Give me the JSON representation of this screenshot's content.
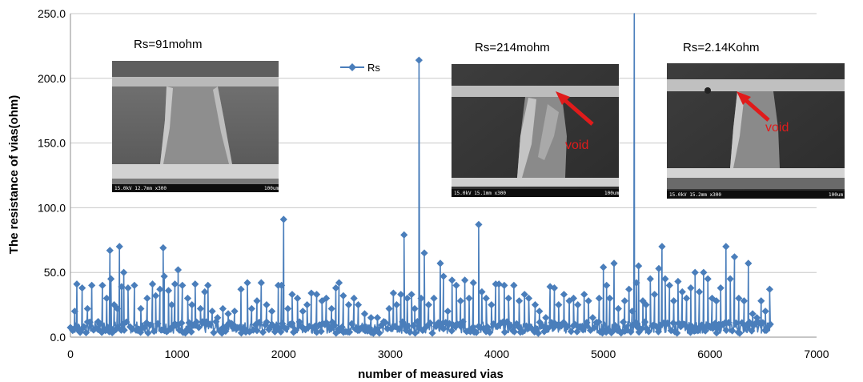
{
  "chart_data": {
    "type": "line",
    "xlabel": "number of measured vias",
    "ylabel": "The resistance of vias(ohm)",
    "xlim": [
      0,
      7000
    ],
    "ylim": [
      0,
      250
    ],
    "x_ticks": [
      "0",
      "1000",
      "2000",
      "3000",
      "4000",
      "5000",
      "6000",
      "7000"
    ],
    "y_ticks": [
      "0.0",
      "50.0",
      "100.0",
      "150.0",
      "200.0",
      "250.0"
    ],
    "grid": "horizontal",
    "legend": {
      "position": "top-center",
      "entries": [
        "Rs"
      ]
    },
    "series": [
      {
        "name": "Rs",
        "color": "#4a7ebb",
        "marker": "diamond",
        "baseline": {
          "x_start": 0,
          "x_end": 6580,
          "typical_range": [
            3,
            12
          ]
        },
        "spikes": [
          {
            "x": 40,
            "y": 20
          },
          {
            "x": 60,
            "y": 41
          },
          {
            "x": 110,
            "y": 38
          },
          {
            "x": 160,
            "y": 22
          },
          {
            "x": 200,
            "y": 40
          },
          {
            "x": 260,
            "y": 12
          },
          {
            "x": 300,
            "y": 40
          },
          {
            "x": 340,
            "y": 30
          },
          {
            "x": 370,
            "y": 67
          },
          {
            "x": 380,
            "y": 45
          },
          {
            "x": 410,
            "y": 25
          },
          {
            "x": 440,
            "y": 22
          },
          {
            "x": 460,
            "y": 70
          },
          {
            "x": 480,
            "y": 39
          },
          {
            "x": 500,
            "y": 50
          },
          {
            "x": 540,
            "y": 38
          },
          {
            "x": 600,
            "y": 40
          },
          {
            "x": 660,
            "y": 22
          },
          {
            "x": 720,
            "y": 30
          },
          {
            "x": 770,
            "y": 41
          },
          {
            "x": 800,
            "y": 32
          },
          {
            "x": 840,
            "y": 37
          },
          {
            "x": 870,
            "y": 69
          },
          {
            "x": 880,
            "y": 47
          },
          {
            "x": 920,
            "y": 36
          },
          {
            "x": 950,
            "y": 25
          },
          {
            "x": 980,
            "y": 41
          },
          {
            "x": 1010,
            "y": 52
          },
          {
            "x": 1050,
            "y": 40
          },
          {
            "x": 1100,
            "y": 30
          },
          {
            "x": 1140,
            "y": 25
          },
          {
            "x": 1170,
            "y": 41
          },
          {
            "x": 1220,
            "y": 22
          },
          {
            "x": 1260,
            "y": 35
          },
          {
            "x": 1290,
            "y": 40
          },
          {
            "x": 1330,
            "y": 20
          },
          {
            "x": 1380,
            "y": 15
          },
          {
            "x": 1430,
            "y": 22
          },
          {
            "x": 1480,
            "y": 18
          },
          {
            "x": 1540,
            "y": 20
          },
          {
            "x": 1600,
            "y": 37
          },
          {
            "x": 1660,
            "y": 42
          },
          {
            "x": 1700,
            "y": 22
          },
          {
            "x": 1750,
            "y": 28
          },
          {
            "x": 1790,
            "y": 42
          },
          {
            "x": 1840,
            "y": 25
          },
          {
            "x": 1890,
            "y": 20
          },
          {
            "x": 1950,
            "y": 40
          },
          {
            "x": 1980,
            "y": 40
          },
          {
            "x": 2000,
            "y": 91
          },
          {
            "x": 2040,
            "y": 22
          },
          {
            "x": 2080,
            "y": 33
          },
          {
            "x": 2130,
            "y": 30
          },
          {
            "x": 2180,
            "y": 20
          },
          {
            "x": 2220,
            "y": 25
          },
          {
            "x": 2260,
            "y": 34
          },
          {
            "x": 2310,
            "y": 33
          },
          {
            "x": 2360,
            "y": 28
          },
          {
            "x": 2400,
            "y": 30
          },
          {
            "x": 2450,
            "y": 22
          },
          {
            "x": 2490,
            "y": 38
          },
          {
            "x": 2520,
            "y": 42
          },
          {
            "x": 2560,
            "y": 32
          },
          {
            "x": 2610,
            "y": 25
          },
          {
            "x": 2660,
            "y": 30
          },
          {
            "x": 2700,
            "y": 25
          },
          {
            "x": 2760,
            "y": 18
          },
          {
            "x": 2820,
            "y": 15
          },
          {
            "x": 2880,
            "y": 15
          },
          {
            "x": 2940,
            "y": 12
          },
          {
            "x": 2990,
            "y": 22
          },
          {
            "x": 3030,
            "y": 34
          },
          {
            "x": 3060,
            "y": 25
          },
          {
            "x": 3100,
            "y": 33
          },
          {
            "x": 3130,
            "y": 79
          },
          {
            "x": 3160,
            "y": 30
          },
          {
            "x": 3200,
            "y": 33
          },
          {
            "x": 3230,
            "y": 22
          },
          {
            "x": 3270,
            "y": 214
          },
          {
            "x": 3290,
            "y": 30
          },
          {
            "x": 3320,
            "y": 65
          },
          {
            "x": 3360,
            "y": 25
          },
          {
            "x": 3410,
            "y": 30
          },
          {
            "x": 3470,
            "y": 57
          },
          {
            "x": 3500,
            "y": 47
          },
          {
            "x": 3540,
            "y": 20
          },
          {
            "x": 3580,
            "y": 44
          },
          {
            "x": 3620,
            "y": 40
          },
          {
            "x": 3660,
            "y": 28
          },
          {
            "x": 3700,
            "y": 44
          },
          {
            "x": 3740,
            "y": 30
          },
          {
            "x": 3780,
            "y": 42
          },
          {
            "x": 3830,
            "y": 87
          },
          {
            "x": 3860,
            "y": 35
          },
          {
            "x": 3900,
            "y": 30
          },
          {
            "x": 3950,
            "y": 25
          },
          {
            "x": 3990,
            "y": 41
          },
          {
            "x": 4020,
            "y": 41
          },
          {
            "x": 4070,
            "y": 40
          },
          {
            "x": 4110,
            "y": 30
          },
          {
            "x": 4160,
            "y": 40
          },
          {
            "x": 4210,
            "y": 28
          },
          {
            "x": 4260,
            "y": 33
          },
          {
            "x": 4300,
            "y": 30
          },
          {
            "x": 4360,
            "y": 25
          },
          {
            "x": 4400,
            "y": 20
          },
          {
            "x": 4460,
            "y": 15
          },
          {
            "x": 4500,
            "y": 39
          },
          {
            "x": 4540,
            "y": 38
          },
          {
            "x": 4580,
            "y": 25
          },
          {
            "x": 4630,
            "y": 33
          },
          {
            "x": 4680,
            "y": 28
          },
          {
            "x": 4720,
            "y": 30
          },
          {
            "x": 4760,
            "y": 25
          },
          {
            "x": 4820,
            "y": 33
          },
          {
            "x": 4860,
            "y": 28
          },
          {
            "x": 4900,
            "y": 15
          },
          {
            "x": 4960,
            "y": 30
          },
          {
            "x": 5000,
            "y": 54
          },
          {
            "x": 5030,
            "y": 40
          },
          {
            "x": 5060,
            "y": 30
          },
          {
            "x": 5100,
            "y": 57
          },
          {
            "x": 5140,
            "y": 22
          },
          {
            "x": 5200,
            "y": 28
          },
          {
            "x": 5240,
            "y": 37
          },
          {
            "x": 5270,
            "y": 20
          },
          {
            "x": 5290,
            "y": 2140
          },
          {
            "x": 5310,
            "y": 42
          },
          {
            "x": 5330,
            "y": 55
          },
          {
            "x": 5370,
            "y": 28
          },
          {
            "x": 5400,
            "y": 25
          },
          {
            "x": 5440,
            "y": 45
          },
          {
            "x": 5480,
            "y": 33
          },
          {
            "x": 5520,
            "y": 53
          },
          {
            "x": 5550,
            "y": 70
          },
          {
            "x": 5580,
            "y": 45
          },
          {
            "x": 5620,
            "y": 40
          },
          {
            "x": 5660,
            "y": 28
          },
          {
            "x": 5700,
            "y": 43
          },
          {
            "x": 5740,
            "y": 35
          },
          {
            "x": 5780,
            "y": 30
          },
          {
            "x": 5820,
            "y": 38
          },
          {
            "x": 5860,
            "y": 50
          },
          {
            "x": 5900,
            "y": 35
          },
          {
            "x": 5940,
            "y": 50
          },
          {
            "x": 5980,
            "y": 45
          },
          {
            "x": 6020,
            "y": 30
          },
          {
            "x": 6060,
            "y": 28
          },
          {
            "x": 6100,
            "y": 38
          },
          {
            "x": 6150,
            "y": 70
          },
          {
            "x": 6190,
            "y": 45
          },
          {
            "x": 6230,
            "y": 62
          },
          {
            "x": 6270,
            "y": 30
          },
          {
            "x": 6320,
            "y": 28
          },
          {
            "x": 6360,
            "y": 57
          },
          {
            "x": 6400,
            "y": 18
          },
          {
            "x": 6440,
            "y": 15
          },
          {
            "x": 6480,
            "y": 28
          },
          {
            "x": 6520,
            "y": 20
          },
          {
            "x": 6560,
            "y": 37
          }
        ]
      }
    ],
    "annotations": [
      {
        "id": "ann1",
        "label": "Rs=91mohm",
        "target": {
          "x": 2000,
          "y": 91
        }
      },
      {
        "id": "ann2",
        "label": "Rs=214mohm",
        "target": {
          "x": 3270,
          "y": 214
        },
        "marker_text": "void"
      },
      {
        "id": "ann3",
        "label": "Rs=2.14Kohm",
        "target": {
          "x": 5290,
          "y": 2140
        },
        "marker_text": "void"
      }
    ]
  },
  "sem_captions": {
    "img1": {
      "left": "15.0kV 12.7mm x300",
      "right": "100um"
    },
    "img2": {
      "left": "15.0kV 15.1mm x300",
      "right": "100um"
    },
    "img3": {
      "left": "15.0kV 15.2mm x300",
      "right": "100um"
    }
  }
}
